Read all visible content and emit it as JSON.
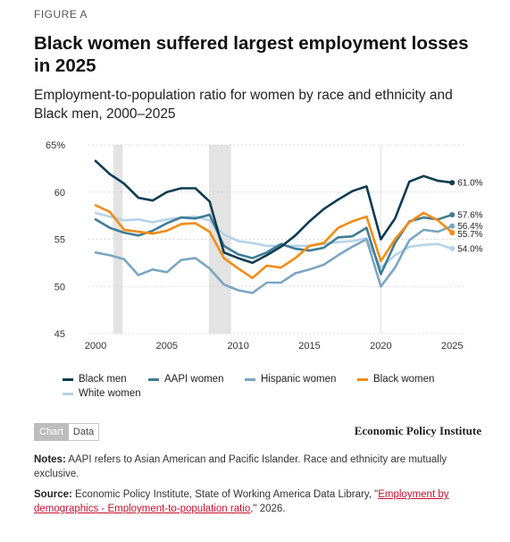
{
  "figure_label": "FIGURE A",
  "title": "Black women suffered largest employment losses in 2025",
  "subtitle": "Employment-to-population ratio for women by race and ethnicity and Black men, 2000–2025",
  "tabs": {
    "chart": "Chart",
    "data": "Data"
  },
  "brand": "Economic Policy Institute",
  "notes": {
    "lead": "Notes:",
    "text": " AAPI refers to Asian American and Pacific Islander. Race and ethnicity are mutually exclusive."
  },
  "source": {
    "lead": "Source:",
    "text": " Economic Policy Institute, State of Working America Data Library, \"",
    "link": "Employment by demographics - Employment-to-population ratio",
    "tail": ",\" 2026."
  },
  "colors": {
    "black_men": "#0b3c52",
    "aapi_women": "#3f7c95",
    "hispanic_women": "#7aa6c2",
    "black_women": "#f28c12",
    "white_women": "#b5d3ea",
    "recession": "#e3e3e3",
    "grid": "#cfcfcf"
  },
  "chart_data": {
    "type": "line",
    "x": [
      2000,
      2001,
      2002,
      2003,
      2004,
      2005,
      2006,
      2007,
      2008,
      2009,
      2010,
      2011,
      2012,
      2013,
      2014,
      2015,
      2016,
      2017,
      2018,
      2019,
      2020,
      2021,
      2022,
      2023,
      2024,
      2025
    ],
    "xticks": [
      2000,
      2005,
      2010,
      2015,
      2020,
      2025
    ],
    "yticks": [
      45,
      50,
      55,
      60,
      65
    ],
    "ytick_labels": [
      "45",
      "50",
      "55",
      "60",
      "65%"
    ],
    "xlim": [
      1999.5,
      2025.8
    ],
    "ylim": [
      45,
      65
    ],
    "grid": "horizontal-dotted",
    "legend_position": "bottom",
    "recessions": [
      [
        2001.25,
        2001.9
      ],
      [
        2007.95,
        2009.5
      ]
    ],
    "series": [
      {
        "name": "Black men",
        "color_key": "black_men",
        "end_label": "61.0%",
        "values": [
          63.3,
          61.9,
          60.9,
          59.4,
          59.1,
          60.0,
          60.4,
          60.4,
          59.0,
          53.6,
          53.0,
          52.5,
          53.3,
          54.2,
          55.4,
          56.9,
          58.2,
          59.2,
          60.1,
          60.6,
          55.0,
          57.2,
          61.1,
          61.7,
          61.2,
          61.0
        ]
      },
      {
        "name": "AAPI women",
        "color_key": "aapi_women",
        "end_label": "57.6%",
        "values": [
          57.1,
          56.2,
          55.7,
          55.4,
          55.9,
          56.7,
          57.3,
          57.2,
          57.6,
          54.3,
          53.4,
          53.0,
          53.6,
          54.5,
          54.0,
          53.8,
          54.1,
          55.2,
          55.3,
          56.2,
          51.3,
          54.6,
          56.9,
          57.3,
          57.1,
          57.6
        ]
      },
      {
        "name": "Hispanic women",
        "color_key": "hispanic_women",
        "end_label": "56.4%",
        "values": [
          53.6,
          53.3,
          52.9,
          51.2,
          51.8,
          51.5,
          52.8,
          53.0,
          51.9,
          50.2,
          49.6,
          49.3,
          50.4,
          50.4,
          51.4,
          51.8,
          52.3,
          53.3,
          54.2,
          55.0,
          50.0,
          52.0,
          54.9,
          56.0,
          55.8,
          56.4
        ]
      },
      {
        "name": "Black women",
        "color_key": "black_women",
        "end_label": "55.7%",
        "values": [
          58.6,
          57.9,
          56.0,
          55.8,
          55.6,
          55.9,
          56.6,
          56.7,
          55.8,
          53.0,
          51.9,
          50.9,
          52.2,
          52.0,
          53.0,
          54.3,
          54.6,
          56.2,
          56.9,
          57.4,
          52.7,
          55.0,
          56.8,
          57.8,
          57.0,
          55.7
        ]
      },
      {
        "name": "White women",
        "color_key": "white_women",
        "end_label": "54.0%",
        "values": [
          57.8,
          57.4,
          57.0,
          57.1,
          56.8,
          57.1,
          57.3,
          57.4,
          57.0,
          55.5,
          54.8,
          54.6,
          54.3,
          54.3,
          54.3,
          54.3,
          54.5,
          54.7,
          54.8,
          55.1,
          52.0,
          53.3,
          54.2,
          54.4,
          54.5,
          54.0
        ]
      }
    ]
  }
}
